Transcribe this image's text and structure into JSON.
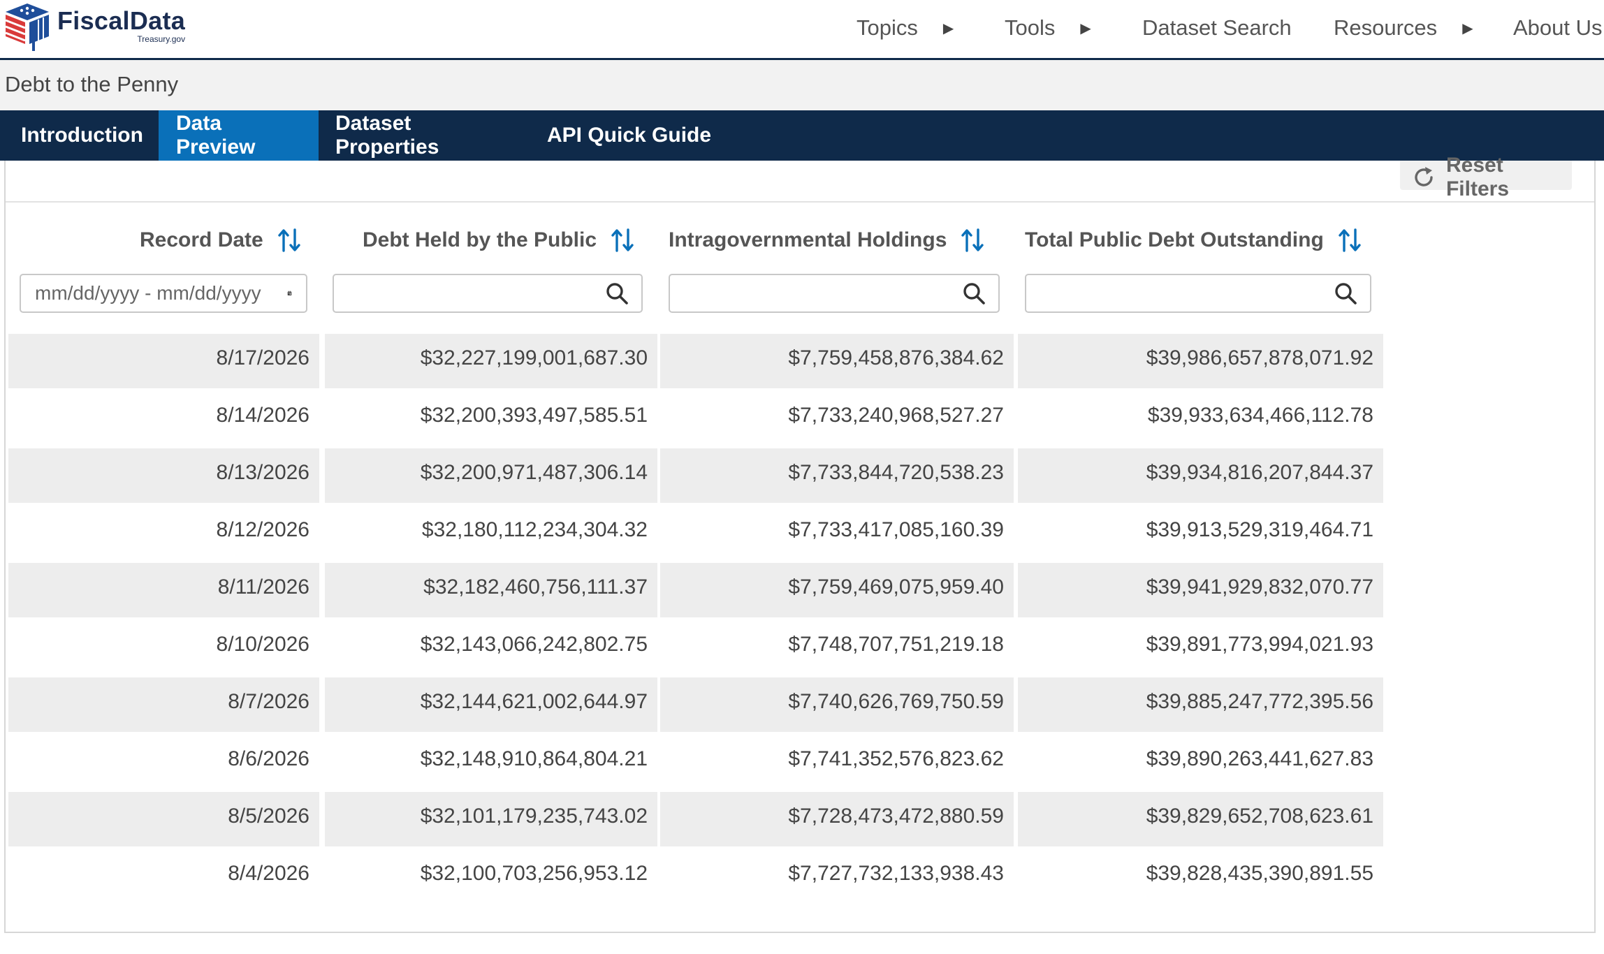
{
  "header": {
    "logo_name": "FiscalData",
    "logo_sub": "Treasury.gov",
    "nav": [
      {
        "label": "Topics"
      },
      {
        "label": "Tools"
      },
      {
        "label": "Dataset Search"
      },
      {
        "label": "Resources"
      },
      {
        "label": "About Us"
      }
    ]
  },
  "dataset": {
    "title": "Debt to the Penny"
  },
  "tabs": [
    {
      "label": "Introduction"
    },
    {
      "label": "Data Preview",
      "active": true
    },
    {
      "label": "Dataset Properties"
    },
    {
      "label": "API Quick Guide"
    }
  ],
  "toolbar": {
    "reset_label": "Reset Filters"
  },
  "table": {
    "columns": [
      {
        "label": "Record Date"
      },
      {
        "label": "Debt Held by the Public"
      },
      {
        "label": "Intragovernmental Holdings"
      },
      {
        "label": "Total Public Debt Outstanding"
      }
    ],
    "date_filter_placeholder": "mm/dd/yyyy - mm/dd/yyyy",
    "rows": [
      [
        "8/17/2026",
        "$32,227,199,001,687.30",
        "$7,759,458,876,384.62",
        "$39,986,657,878,071.92"
      ],
      [
        "8/14/2026",
        "$32,200,393,497,585.51",
        "$7,733,240,968,527.27",
        "$39,933,634,466,112.78"
      ],
      [
        "8/13/2026",
        "$32,200,971,487,306.14",
        "$7,733,844,720,538.23",
        "$39,934,816,207,844.37"
      ],
      [
        "8/12/2026",
        "$32,180,112,234,304.32",
        "$7,733,417,085,160.39",
        "$39,913,529,319,464.71"
      ],
      [
        "8/11/2026",
        "$32,182,460,756,111.37",
        "$7,759,469,075,959.40",
        "$39,941,929,832,070.77"
      ],
      [
        "8/10/2026",
        "$32,143,066,242,802.75",
        "$7,748,707,751,219.18",
        "$39,891,773,994,021.93"
      ],
      [
        "8/7/2026",
        "$32,144,621,002,644.97",
        "$7,740,626,769,750.59",
        "$39,885,247,772,395.56"
      ],
      [
        "8/6/2026",
        "$32,148,910,864,804.21",
        "$7,741,352,576,823.62",
        "$39,890,263,441,627.83"
      ],
      [
        "8/5/2026",
        "$32,101,179,235,743.02",
        "$7,728,473,472,880.59",
        "$39,829,652,708,623.61"
      ],
      [
        "8/4/2026",
        "$32,100,703,256,953.12",
        "$7,727,732,133,938.43",
        "$39,828,435,390,891.55"
      ]
    ]
  },
  "colors": {
    "navy": "#0f2a4a",
    "active_tab": "#0a70b9",
    "sort_icon": "#0a70b9",
    "row_shade": "#ededed"
  }
}
